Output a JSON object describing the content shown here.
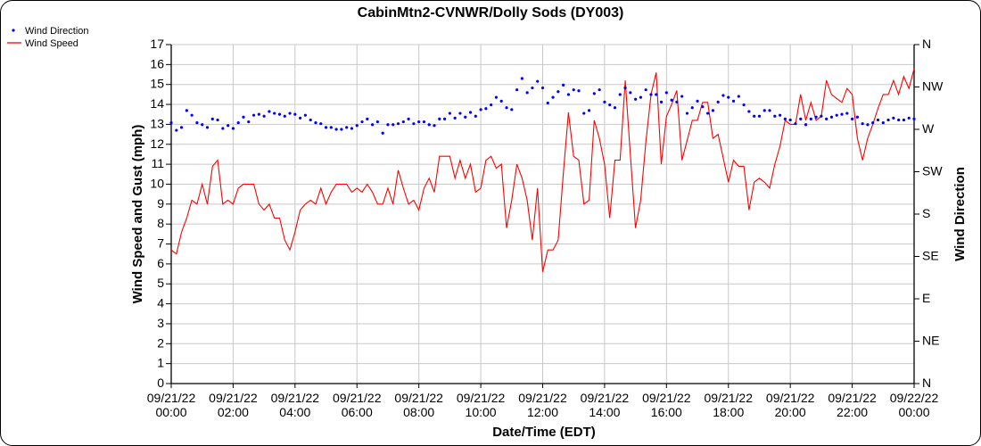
{
  "chart_data": {
    "type": "line",
    "title": "CabinMtn2-CVNWR/Dolly Sods (DY003)",
    "xlabel": "Date/Time (EDT)",
    "ylabel": "Wind Speed and Gust (mph)",
    "y2label": "Wind Direction",
    "xlim_hours": [
      0,
      24
    ],
    "ylim": [
      0,
      17
    ],
    "y2lim": [
      0,
      360
    ],
    "grid": true,
    "legend_position": "top-left",
    "x_interval_minutes": 10,
    "x_tick_labels": [
      [
        "09/21/22",
        "00:00"
      ],
      [
        "09/21/22",
        "02:00"
      ],
      [
        "09/21/22",
        "04:00"
      ],
      [
        "09/21/22",
        "06:00"
      ],
      [
        "09/21/22",
        "08:00"
      ],
      [
        "09/21/22",
        "10:00"
      ],
      [
        "09/21/22",
        "12:00"
      ],
      [
        "09/21/22",
        "14:00"
      ],
      [
        "09/21/22",
        "16:00"
      ],
      [
        "09/21/22",
        "18:00"
      ],
      [
        "09/21/22",
        "20:00"
      ],
      [
        "09/21/22",
        "22:00"
      ],
      [
        "09/22/22",
        "00:00"
      ]
    ],
    "y_tick_labels": [
      "0",
      "1",
      "2",
      "3",
      "4",
      "5",
      "6",
      "7",
      "8",
      "9",
      "10",
      "11",
      "12",
      "13",
      "14",
      "15",
      "16",
      "17"
    ],
    "y2_tick_labels": [
      "N",
      "NE",
      "E",
      "SE",
      "S",
      "SW",
      "W",
      "NW",
      "N"
    ],
    "series": [
      {
        "name": "Wind Direction",
        "kind": "scatter",
        "axis": "right",
        "color": "#0000ff",
        "values": [
          277,
          269,
          272,
          290,
          285,
          277,
          275,
          272,
          281,
          280,
          271,
          274,
          271,
          277,
          283,
          278,
          285,
          286,
          284,
          289,
          287,
          286,
          284,
          287,
          286,
          282,
          285,
          280,
          277,
          276,
          272,
          272,
          270,
          270,
          272,
          271,
          274,
          278,
          281,
          275,
          278,
          266,
          275,
          275,
          276,
          278,
          281,
          276,
          278,
          278,
          275,
          274,
          281,
          281,
          287,
          282,
          287,
          283,
          288,
          284,
          291,
          292,
          296,
          304,
          300,
          293,
          291,
          312,
          324,
          309,
          314,
          321,
          314,
          298,
          304,
          310,
          317,
          307,
          312,
          311,
          287,
          290,
          308,
          312,
          299,
          296,
          293,
          307,
          314,
          309,
          302,
          304,
          312,
          307,
          307,
          299,
          309,
          301,
          299,
          305,
          287,
          293,
          300,
          294,
          287,
          290,
          299,
          306,
          304,
          300,
          305,
          296,
          289,
          284,
          284,
          290,
          290,
          284,
          285,
          281,
          280,
          276,
          281,
          275,
          281,
          283,
          284,
          281,
          283,
          285,
          286,
          287,
          281,
          283,
          276,
          275,
          277,
          280,
          277,
          280,
          282,
          280,
          280,
          282,
          281
        ]
      },
      {
        "name": "Wind Speed",
        "kind": "line",
        "axis": "left",
        "color": "#ff0000",
        "values": [
          6.7,
          6.5,
          7.6,
          8.3,
          9.2,
          9.0,
          10.0,
          9.0,
          10.9,
          11.2,
          9.0,
          9.2,
          9.0,
          9.8,
          10.0,
          10.0,
          10.0,
          9.0,
          8.7,
          9.0,
          8.3,
          8.3,
          7.2,
          6.7,
          7.6,
          8.7,
          9.0,
          9.2,
          9.0,
          9.8,
          9.0,
          9.6,
          10.0,
          10.0,
          10.0,
          9.6,
          9.8,
          9.6,
          10.0,
          9.6,
          9.0,
          9.0,
          9.8,
          9.0,
          10.7,
          9.8,
          9.0,
          9.2,
          8.7,
          9.8,
          10.3,
          9.6,
          11.4,
          11.4,
          11.4,
          10.3,
          11.2,
          10.3,
          11.0,
          9.6,
          9.8,
          11.2,
          11.4,
          10.8,
          11.0,
          7.8,
          9.2,
          11.0,
          10.3,
          9.2,
          7.2,
          9.8,
          5.6,
          6.7,
          6.7,
          7.2,
          10.5,
          13.6,
          11.4,
          11.2,
          9.0,
          9.2,
          13.2,
          12.3,
          11.0,
          8.3,
          11.2,
          11.2,
          15.2,
          11.5,
          7.8,
          9.2,
          12.1,
          14.5,
          15.6,
          11.0,
          13.4,
          14.0,
          14.7,
          11.2,
          12.2,
          13.2,
          13.2,
          14.1,
          14.1,
          12.3,
          12.5,
          11.3,
          10.1,
          11.2,
          10.9,
          10.9,
          8.7,
          10.1,
          10.3,
          10.1,
          9.8,
          11.0,
          11.9,
          13.2,
          13.0,
          13.0,
          14.5,
          13.2,
          14.1,
          13.2,
          13.4,
          15.2,
          14.5,
          14.3,
          14.1,
          14.8,
          14.5,
          12.3,
          11.2,
          12.3,
          13.0,
          13.8,
          14.5,
          14.5,
          15.2,
          14.5,
          15.4,
          14.8,
          15.8
        ]
      }
    ]
  }
}
